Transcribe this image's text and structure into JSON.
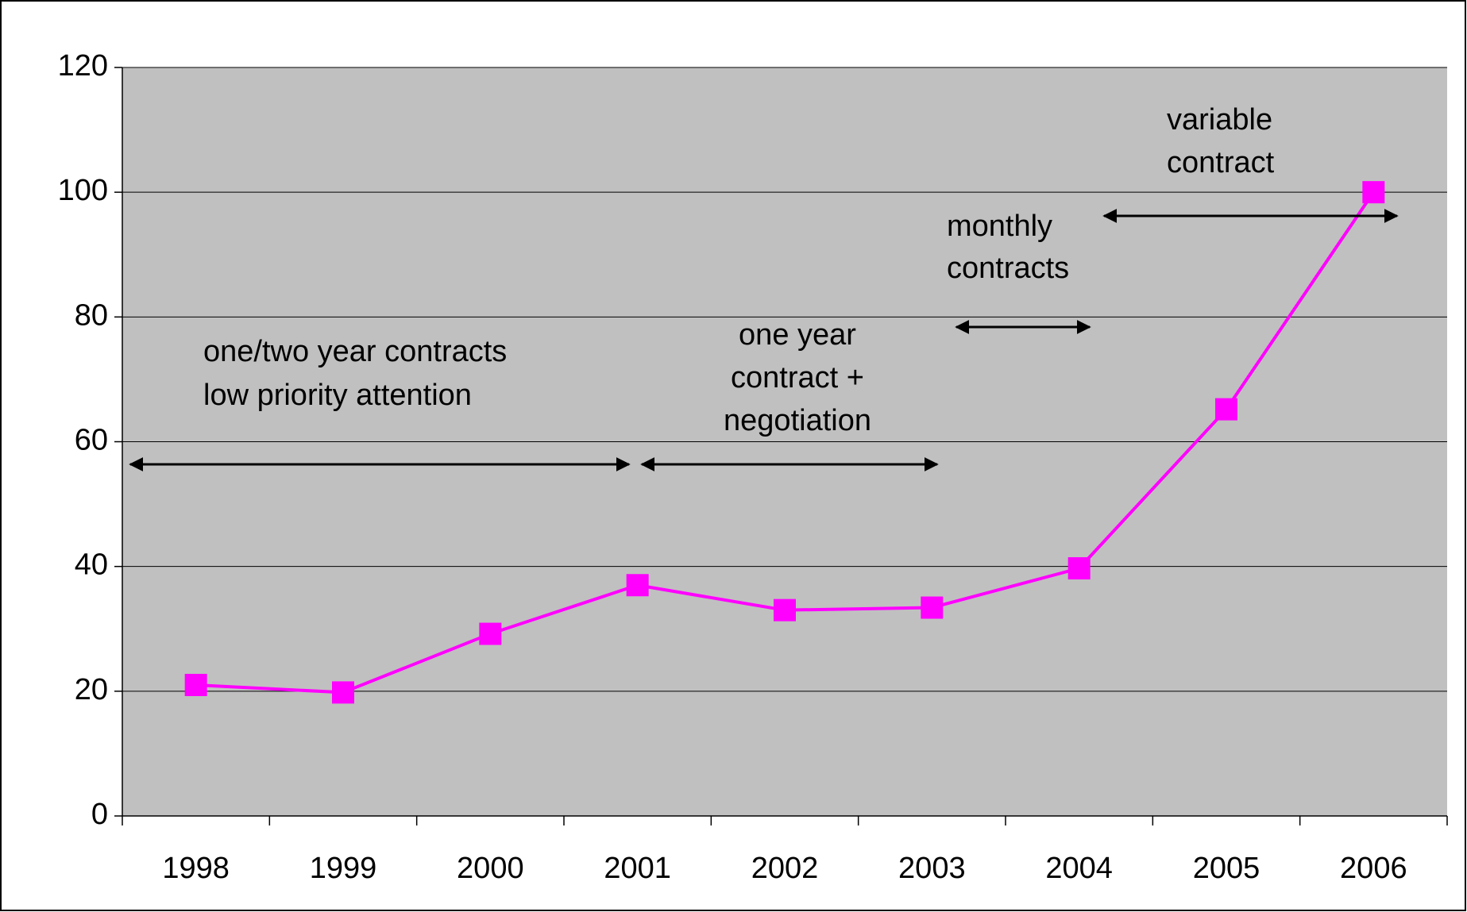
{
  "chart_data": {
    "type": "line",
    "categories": [
      "1998",
      "1999",
      "2000",
      "2001",
      "2002",
      "2003",
      "2004",
      "2005",
      "2006"
    ],
    "series": [
      {
        "color": "#ff00ff",
        "values": [
          21,
          19.8,
          29.2,
          37,
          33,
          33.4,
          39.7,
          65.2,
          100
        ]
      }
    ],
    "ylim": [
      0,
      120
    ],
    "yticks": [
      0,
      20,
      40,
      60,
      80,
      100,
      120
    ],
    "grid": true,
    "plot_background": "#c0c0c0",
    "annotations": [
      {
        "lines": [
          "one/two year contracts",
          "low priority attention"
        ]
      },
      {
        "lines": [
          "one year",
          "contract +",
          "negotiation"
        ]
      },
      {
        "lines": [
          "monthly",
          "contracts"
        ]
      },
      {
        "lines": [
          "variable",
          "contract"
        ]
      }
    ]
  }
}
